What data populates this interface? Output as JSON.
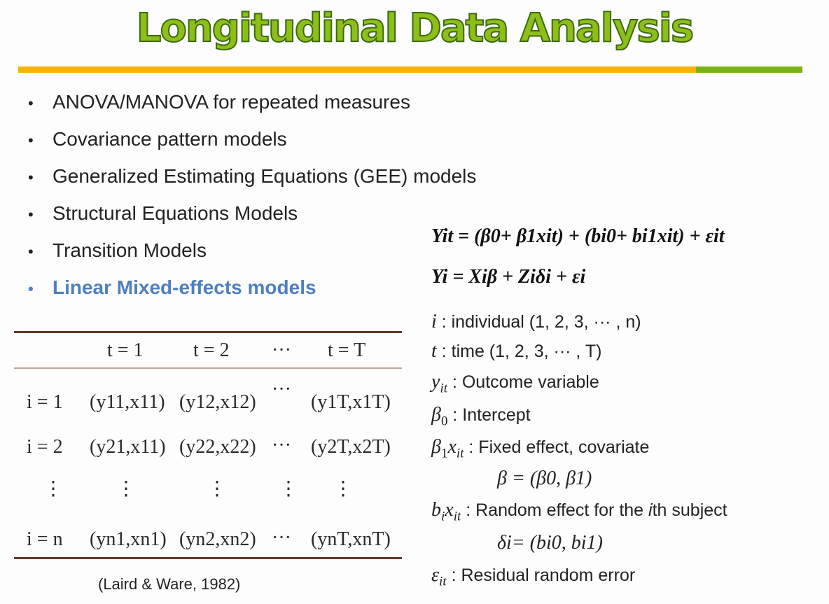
{
  "title": "Longitudinal Data Analysis",
  "colors": {
    "title_fill": "#8ebf19",
    "rule_orange": "#f6b300",
    "rule_green": "#7ab317",
    "highlight": "#4f7fc0",
    "table_rule": "#5a3b28"
  },
  "bullets": [
    {
      "text": "ANOVA/MANOVA for repeated measures",
      "highlight": false
    },
    {
      "text": "Covariance pattern models",
      "highlight": false
    },
    {
      "text": "Generalized Estimating Equations (GEE) models",
      "highlight": false
    },
    {
      "text": "Structural Equations Models",
      "highlight": false
    },
    {
      "text": "Transition Models",
      "highlight": false
    },
    {
      "text": "Linear Mixed-effects models",
      "highlight": true
    }
  ],
  "bullet_symbol": "•",
  "table": {
    "headers": {
      "t1": "t = 1",
      "t2": "t = 2",
      "dots": "···",
      "tT": "t = T"
    },
    "rows": [
      {
        "label": "i = 1",
        "c1": "(y11,x11)",
        "c2": "(y12,x12)",
        "dots": "···",
        "cT": "(y1T,x1T)"
      },
      {
        "label": "i = 2",
        "c1": "(y21,x11)",
        "c2": "(y22,x22)",
        "dots": "···",
        "cT": "(y2T,x2T)"
      },
      {
        "label": "i = n",
        "c1": "(yn1,xn1)",
        "c2": "(yn2,xn2)",
        "dots": "···",
        "cT": "(ynT,xnT)"
      }
    ],
    "vdots": "⋮"
  },
  "citation": "(Laird & Ware, 1982)",
  "equations": {
    "eq1": "Yit = (β0+ β1xit) + (bi0+ bi1xit) + εit",
    "eq2": "Yi = Xiβ + Ziδi + εi"
  },
  "definitions": {
    "i_text": ": individual (1, 2, 3, ··· , n)",
    "t_text": ": time (1, 2, 3, ··· , T)",
    "y_text": ": Outcome variable",
    "b0_text": ": Intercept",
    "b1_text": ": Fixed effect, covariate",
    "beta_vec": "β = (β0, β1)",
    "bi_text_1": ": Random effect for the ",
    "bi_text_i": "i",
    "bi_text_2": "th subject",
    "delta_vec": "δi= (bi0, bi1)",
    "eps_text": ": Residual random error"
  }
}
